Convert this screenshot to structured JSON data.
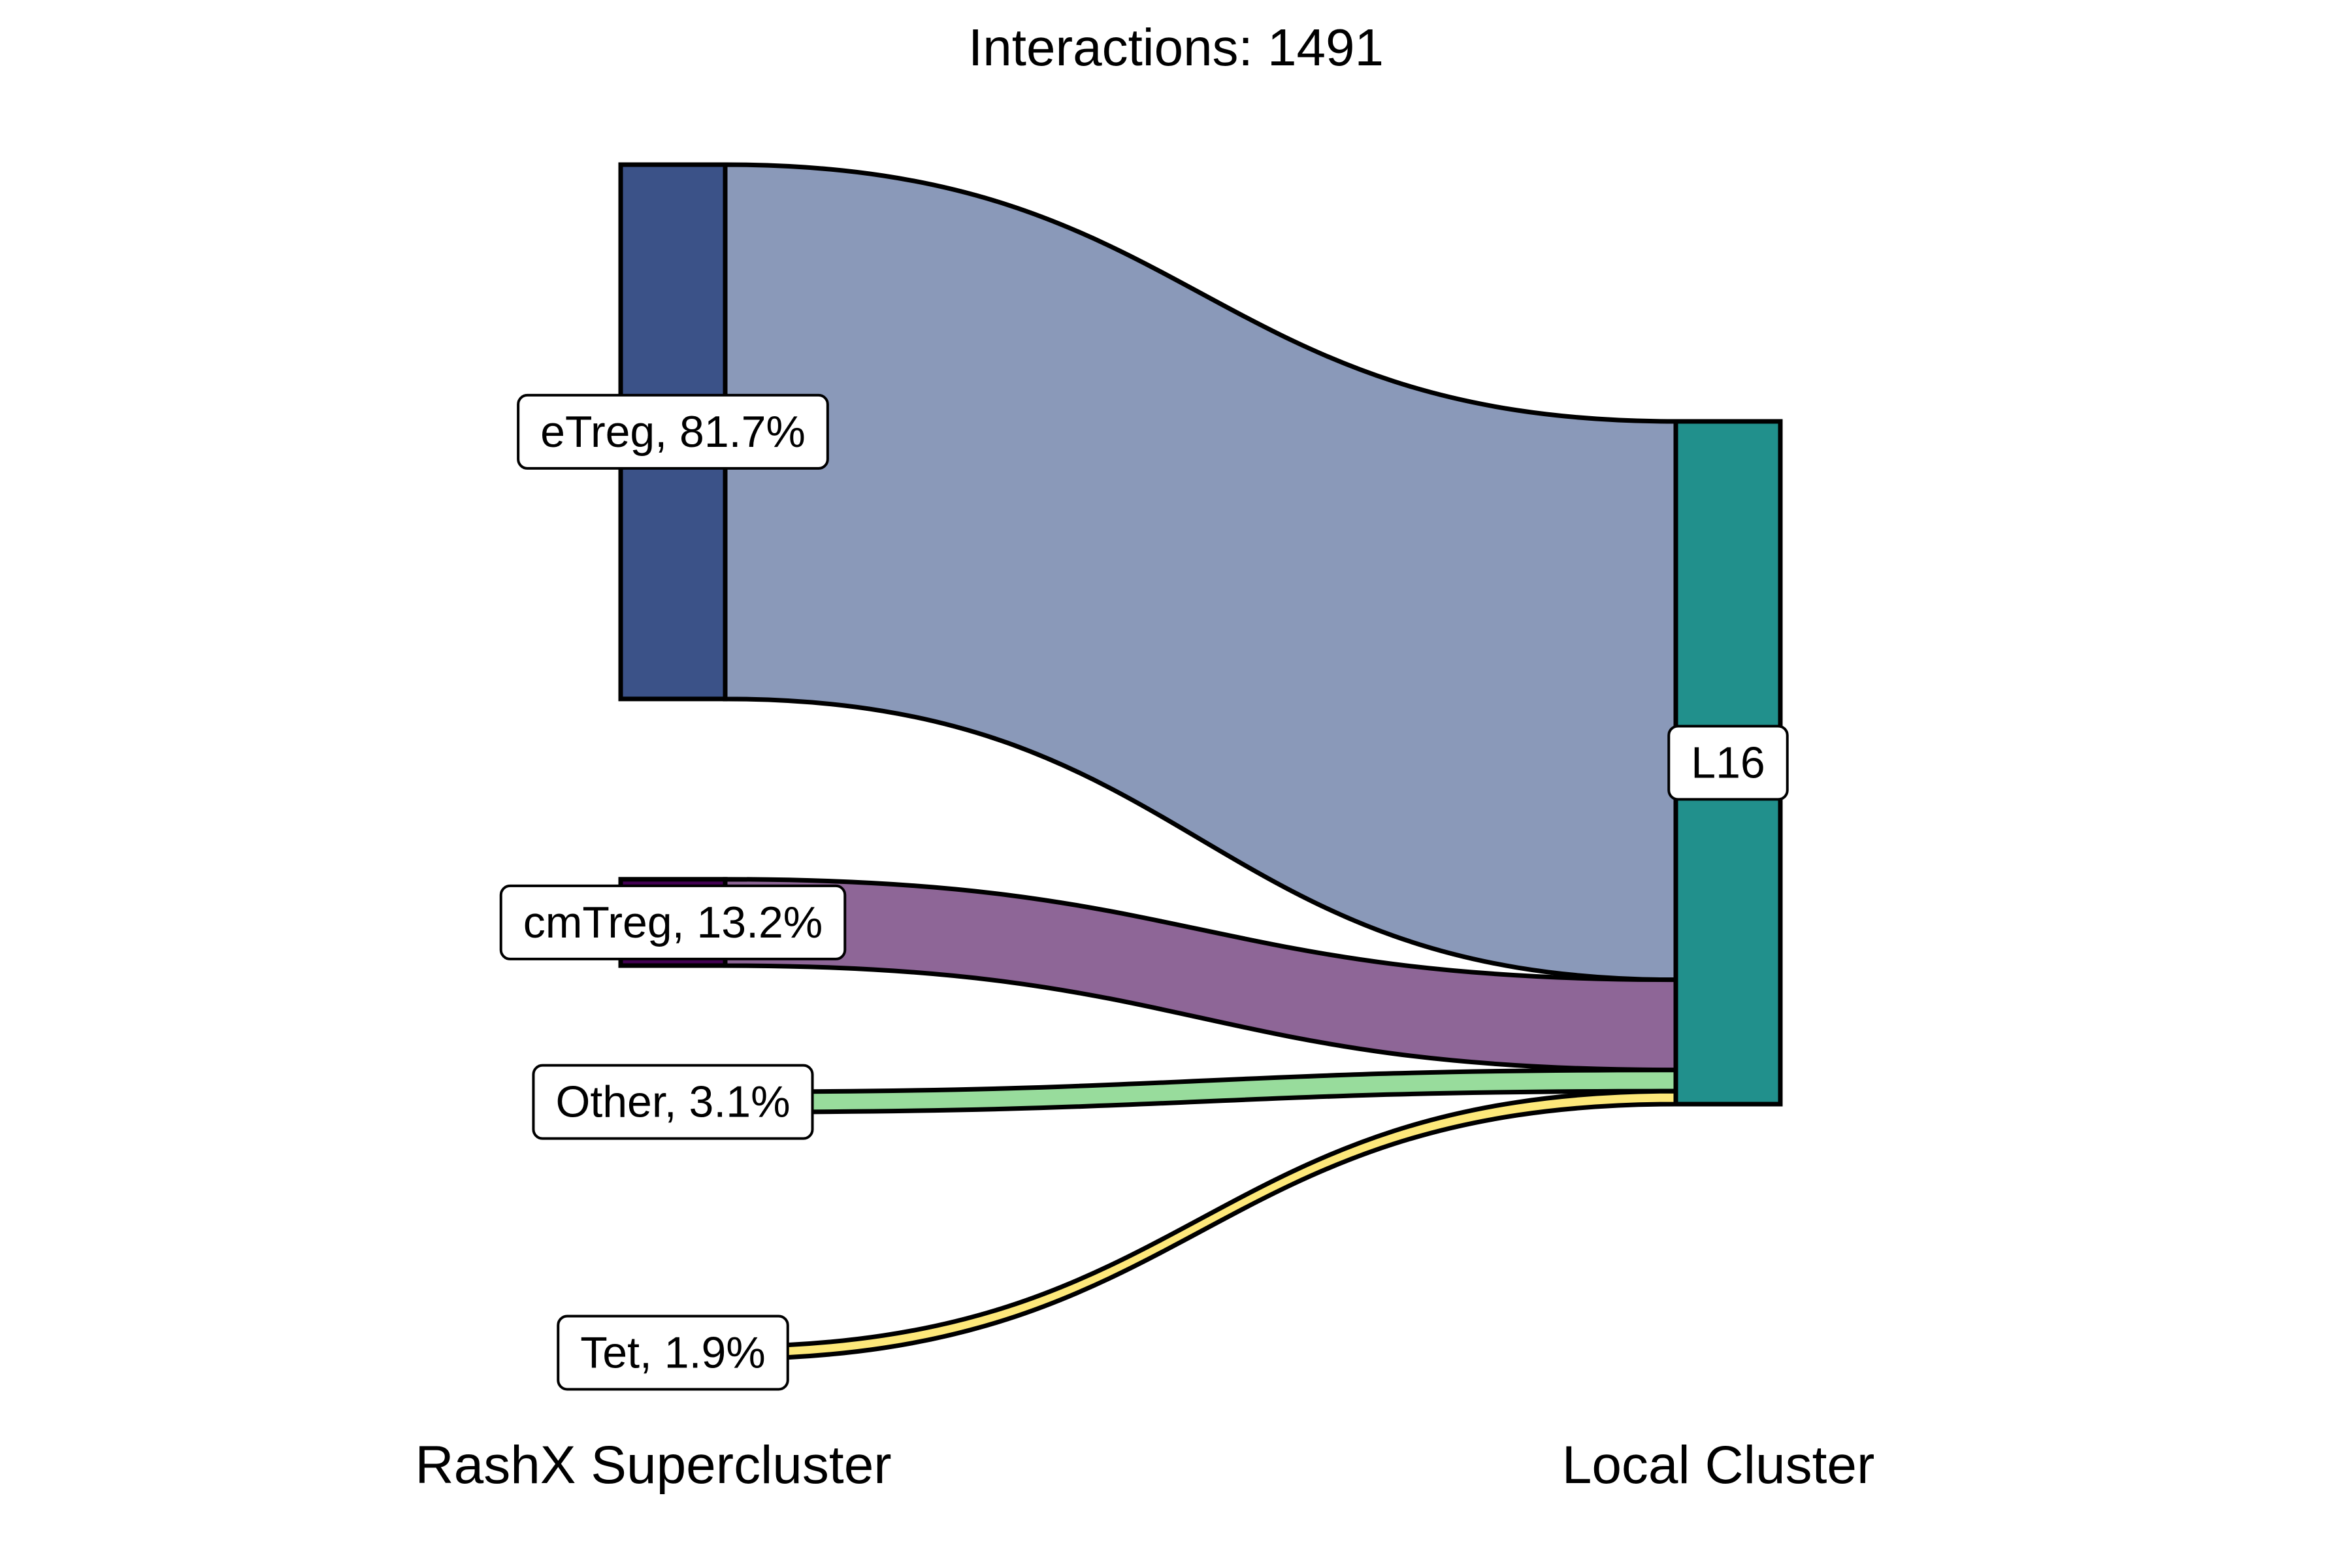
{
  "chart_data": {
    "type": "sankey",
    "title": "Interactions: 1491",
    "axes": {
      "left": "RashX Supercluster",
      "right": "Local Cluster"
    },
    "source_nodes": [
      {
        "name": "eTreg",
        "label": "eTreg, 81.7%",
        "percent": 81.7,
        "fill": "#3b5288",
        "flow_color": "#8a99b9"
      },
      {
        "name": "cmTreg",
        "label": "cmTreg, 13.2%",
        "percent": 13.2,
        "fill": "#440154",
        "flow_color": "#8e6697"
      },
      {
        "name": "Other",
        "label": "Other, 3.1%",
        "percent": 3.1,
        "fill": "#8fd694",
        "flow_color": "#98dc9c"
      },
      {
        "name": "Tet",
        "label": "Tet, 1.9%",
        "percent": 1.9,
        "fill": "#f9e46a",
        "flow_color": "#fde87a"
      }
    ],
    "target_nodes": [
      {
        "name": "L16",
        "label": "L16",
        "percent": 100,
        "fill": "#21908c"
      }
    ],
    "flows": [
      {
        "source": "eTreg",
        "target": "L16",
        "percent": 81.7
      },
      {
        "source": "cmTreg",
        "target": "L16",
        "percent": 13.2
      },
      {
        "source": "Other",
        "target": "L16",
        "percent": 3.1
      },
      {
        "source": "Tet",
        "target": "L16",
        "percent": 1.9
      }
    ]
  }
}
